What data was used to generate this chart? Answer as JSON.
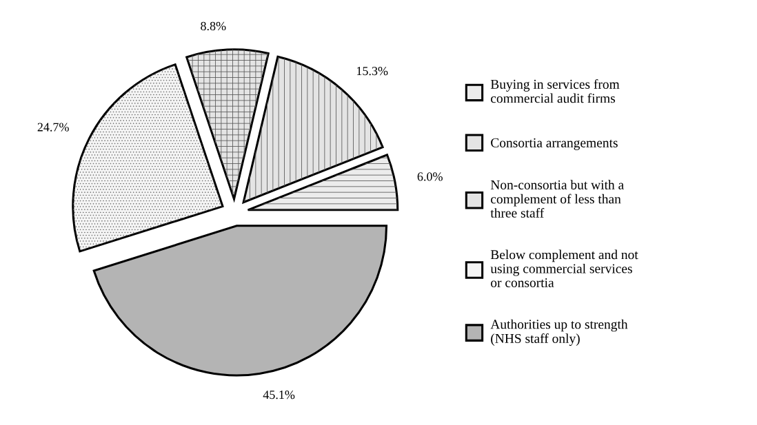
{
  "chart_data": {
    "type": "pie",
    "categories": [
      "Buying in services from\ncommercial audit firms",
      "Consortia arrangements",
      "Non-consortia but with a\ncomplement of less than\nthree staff",
      "Below complement and not\nusing commercial services\nor consortia",
      "Authorities up to strength\n(NHS staff only)"
    ],
    "values": [
      6.0,
      15.3,
      8.8,
      24.7,
      45.1
    ],
    "value_labels": [
      "6.0%",
      "15.3%",
      "8.8%",
      "24.7%",
      "45.1%"
    ],
    "colors": [
      "#ececec",
      "#e4e4e4",
      "#e4e4e4",
      "#f4f4f4",
      "#b4b4b4"
    ],
    "legend": "right"
  }
}
